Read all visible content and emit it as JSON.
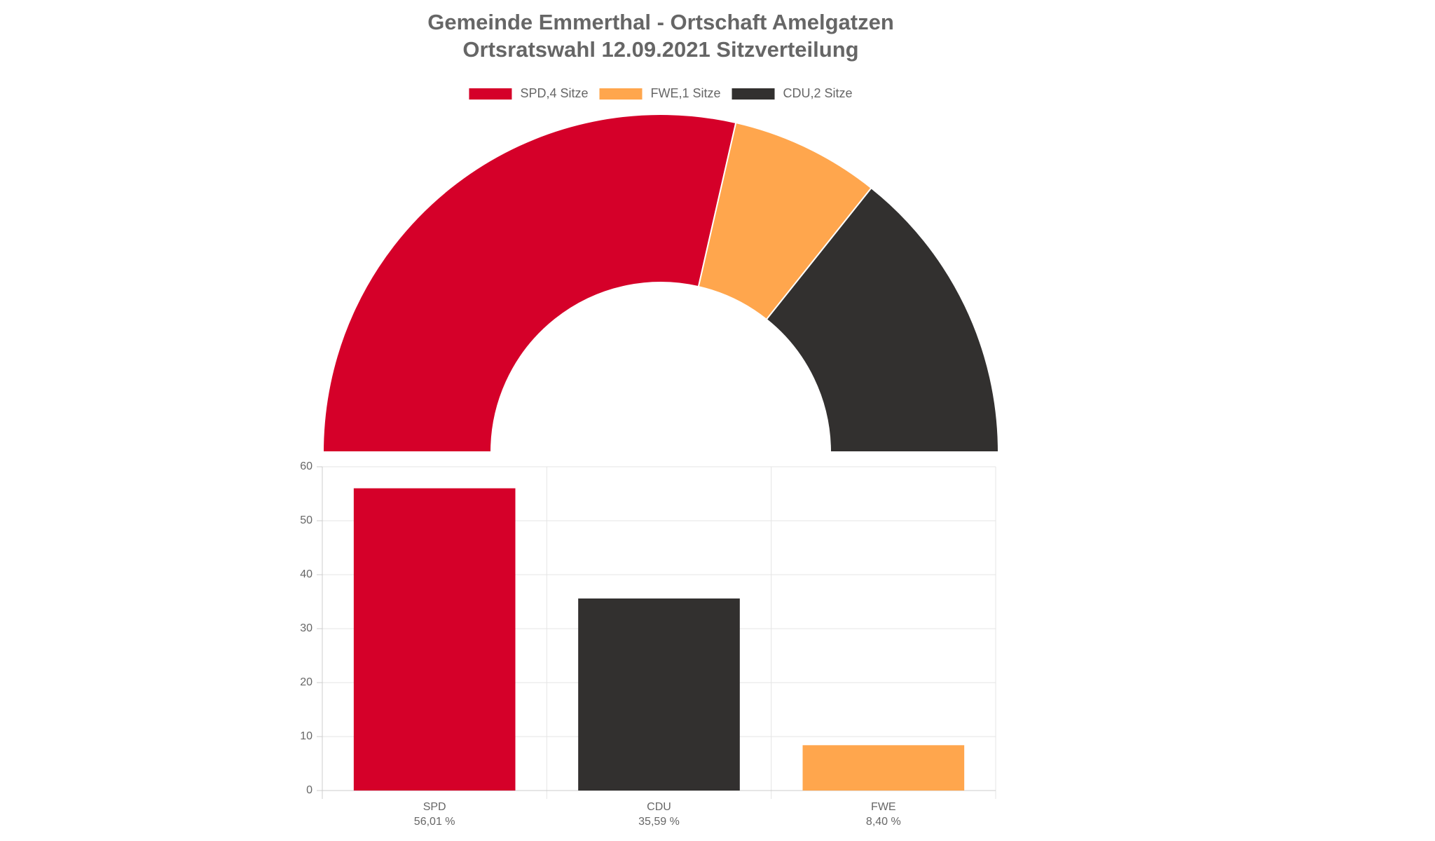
{
  "chart_data": [
    {
      "type": "pie",
      "title": [
        "Gemeinde Emmerthal - Ortschaft Amelgatzen",
        "Ortsratswahl 12.09.2021 Sitzverteilung"
      ],
      "categories": [
        "SPD,4 Sitze",
        "FWE,1 Sitze",
        "CDU,2 Sitze"
      ],
      "values": [
        4,
        1,
        2
      ],
      "colors": [
        "#d50029",
        "#ffa64d",
        "#32302f"
      ],
      "legend": "top"
    },
    {
      "type": "bar",
      "categories": [
        "SPD",
        "CDU",
        "FWE"
      ],
      "values": [
        56.01,
        35.59,
        8.4
      ],
      "value_labels": [
        "56,01 %",
        "35,59 %",
        "8,40 %"
      ],
      "colors": [
        "#d50029",
        "#32302f",
        "#ffa64d"
      ],
      "ylim": [
        0,
        60
      ],
      "yticks": [
        0,
        10,
        20,
        30,
        40,
        50,
        60
      ],
      "grid": true
    }
  ]
}
